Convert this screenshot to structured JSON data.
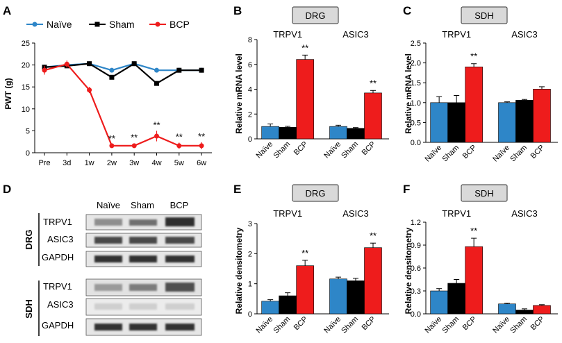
{
  "colors": {
    "naive": "#2e86c8",
    "sham": "#000000",
    "bcp": "#ee1c1c",
    "box": "#d9d9d9"
  },
  "panel_labels": {
    "a": "A",
    "b": "B",
    "c": "C",
    "d": "D",
    "e": "E",
    "f": "F"
  },
  "chart_data": [
    {
      "id": "A",
      "type": "line",
      "ylabel": "PWT (g)",
      "xlabel": "",
      "categories": [
        "Pre",
        "3d",
        "1w",
        "2w",
        "3w",
        "4w",
        "5w",
        "6w"
      ],
      "ylim": [
        0,
        25
      ],
      "yticks": [
        "0",
        "5",
        "10",
        "15",
        "20",
        "25"
      ],
      "legend": [
        "Naïve",
        "Sham",
        "BCP"
      ],
      "series": [
        {
          "name": "Naïve",
          "key": "naive",
          "values": [
            19.5,
            20.0,
            20.3,
            18.8,
            20.3,
            18.8,
            18.8,
            18.8
          ]
        },
        {
          "name": "Sham",
          "key": "sham",
          "values": [
            19.5,
            19.8,
            20.3,
            17.2,
            20.3,
            15.8,
            18.8,
            18.8
          ]
        },
        {
          "name": "BCP",
          "key": "bcp",
          "values": [
            18.8,
            20.2,
            14.3,
            1.6,
            1.6,
            3.8,
            1.6,
            1.6
          ],
          "errors": [
            1.0,
            0.8,
            0.7,
            0.3,
            0.5,
            1.2,
            0.7,
            0.8
          ]
        }
      ],
      "annotations": {
        "marker": "**",
        "at": [
          3,
          4,
          5,
          6,
          7
        ]
      }
    },
    {
      "id": "B",
      "type": "bar",
      "title": "DRG",
      "ylabel": "Relative mRNA level",
      "ylim": [
        0,
        8
      ],
      "yticks": [
        "0",
        "2",
        "4",
        "6",
        "8"
      ],
      "groups": [
        "TRPV1",
        "ASIC3"
      ],
      "categories": [
        "Naïve",
        "Sham",
        "BCP"
      ],
      "values": [
        [
          1.0,
          0.93,
          6.4
        ],
        [
          1.0,
          0.85,
          3.7
        ]
      ],
      "errors": [
        [
          0.2,
          0.08,
          0.35
        ],
        [
          0.1,
          0.06,
          0.2
        ]
      ],
      "annotation": "**"
    },
    {
      "id": "C",
      "type": "bar",
      "title": "SDH",
      "ylabel": "Relative mRNA level",
      "ylim": [
        0,
        2.5
      ],
      "yticks": [
        "0.0",
        "0.5",
        "1.0",
        "1.5",
        "2.0",
        "2.5"
      ],
      "groups": [
        "TRPV1",
        "ASIC3"
      ],
      "categories": [
        "Naïve",
        "Sham",
        "BCP"
      ],
      "values": [
        [
          1.0,
          1.0,
          1.9
        ],
        [
          1.0,
          1.06,
          1.34
        ]
      ],
      "errors": [
        [
          0.15,
          0.18,
          0.08
        ],
        [
          0.02,
          0.02,
          0.06
        ]
      ],
      "annotation": "**"
    },
    {
      "id": "E",
      "type": "bar",
      "title": "DRG",
      "ylabel": "Relative densitometry",
      "ylim": [
        0,
        3
      ],
      "yticks": [
        "0",
        "1",
        "2",
        "3"
      ],
      "groups": [
        "TRPV1",
        "ASIC3"
      ],
      "categories": [
        "Naïve",
        "Sham",
        "BCP"
      ],
      "values": [
        [
          0.42,
          0.6,
          1.6
        ],
        [
          1.16,
          1.1,
          2.2
        ]
      ],
      "errors": [
        [
          0.05,
          0.1,
          0.18
        ],
        [
          0.06,
          0.08,
          0.15
        ]
      ],
      "annotation": "**"
    },
    {
      "id": "F",
      "type": "bar",
      "title": "SDH",
      "ylabel": "Relative densitometry",
      "ylim": [
        0,
        1.2
      ],
      "yticks": [
        "0.0",
        "0.3",
        "0.6",
        "0.9",
        "1.2"
      ],
      "groups": [
        "TRPV1",
        "ASIC3"
      ],
      "categories": [
        "Naïve",
        "Sham",
        "BCP"
      ],
      "values": [
        [
          0.3,
          0.4,
          0.88
        ],
        [
          0.13,
          0.05,
          0.11
        ]
      ],
      "errors": [
        [
          0.03,
          0.05,
          0.11
        ],
        [
          0.01,
          0.015,
          0.01
        ]
      ],
      "annotation": "**"
    }
  ],
  "blot": {
    "columns": [
      "Naïve",
      "Sham",
      "BCP"
    ],
    "groups": [
      {
        "name": "DRG",
        "rows": [
          "TRPV1",
          "ASIC3",
          "GAPDH"
        ]
      },
      {
        "name": "SDH",
        "rows": [
          "TRPV1",
          "ASIC3",
          "GAPDH"
        ]
      }
    ]
  }
}
